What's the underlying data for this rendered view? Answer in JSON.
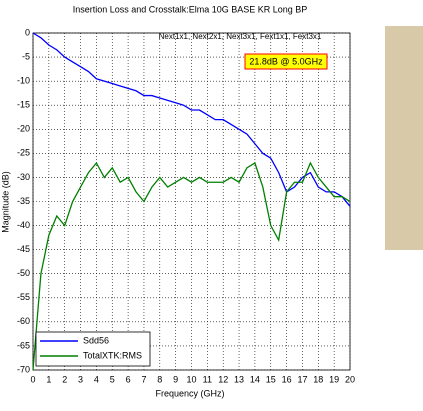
{
  "chart_data": {
    "type": "line",
    "title": "Insertion Loss and Crosstalk:Elma 10G BASE KR Long BP",
    "annotation": "Next1x1, Next2x1, Next3x1, Fext1x1, Fext3x1",
    "callout": "21.8dB @ 5.0GHz",
    "x_label": "Frequency (GHz)",
    "y_label": "Magnitude (dB)",
    "x": [
      0,
      0.5,
      1,
      1.5,
      2,
      2.5,
      3,
      3.5,
      4,
      4.5,
      5,
      5.5,
      6,
      6.5,
      7,
      7.5,
      8,
      8.5,
      9,
      9.5,
      10,
      10.5,
      11,
      11.5,
      12,
      12.5,
      13,
      13.5,
      14,
      14.5,
      15,
      15.5,
      16,
      16.5,
      17,
      17.5,
      18,
      18.5,
      19,
      19.5,
      20
    ],
    "series": [
      {
        "name": "Sdd56",
        "color": "#0000ff",
        "values": [
          0,
          -1,
          -2.5,
          -3.5,
          -5,
          -6,
          -7,
          -8,
          -9.5,
          -10,
          -10.5,
          -11,
          -11.5,
          -12,
          -13,
          -13,
          -13.5,
          -14,
          -14.5,
          -15,
          -16,
          -16,
          -17,
          -18,
          -18,
          -19,
          -20,
          -21,
          -23,
          -25,
          -26,
          -29,
          -33,
          -32,
          -30,
          -29,
          -32,
          -33,
          -33,
          -34,
          -36
        ]
      },
      {
        "name": "TotalXTK:RMS",
        "color": "#008000",
        "values": [
          -70,
          -50,
          -42,
          -38,
          -40,
          -35,
          -32,
          -29,
          -27,
          -30,
          -28,
          -31,
          -30,
          -33,
          -35,
          -32,
          -30,
          -32,
          -31,
          -30,
          -31,
          -30,
          -31,
          -31,
          -31,
          -30,
          -31,
          -28,
          -27,
          -32,
          -40,
          -43,
          -33,
          -31,
          -31,
          -27,
          -30,
          -32,
          -34,
          -34,
          -35
        ]
      }
    ],
    "xlim": [
      0,
      20
    ],
    "ylim": [
      -70,
      0
    ],
    "xticks": [
      0,
      1,
      2,
      3,
      4,
      5,
      6,
      7,
      8,
      9,
      10,
      11,
      12,
      13,
      14,
      15,
      16,
      17,
      18,
      19,
      20
    ],
    "yticks": [
      -70,
      -65,
      -60,
      -55,
      -50,
      -45,
      -40,
      -35,
      -30,
      -25,
      -20,
      -15,
      -10,
      -5,
      0
    ],
    "grid": true,
    "legend": "lower left"
  }
}
